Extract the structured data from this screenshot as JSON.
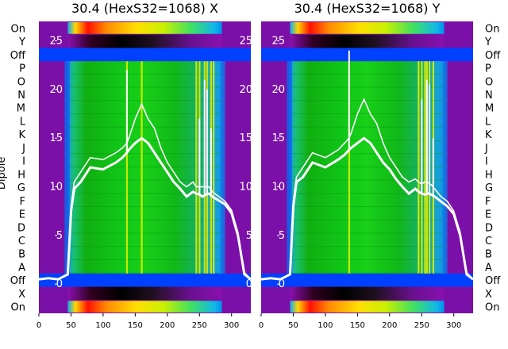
{
  "chart_data": [
    {
      "type": "heatmap",
      "title": "30.4 (HexS32=1068) X",
      "ylabel": "Dipole",
      "xlim": [
        0,
        330
      ],
      "x_ticks": [
        0,
        50,
        100,
        150,
        200,
        250,
        300
      ],
      "rows": [
        "On",
        "Y",
        "Off",
        "P",
        "O",
        "N",
        "M",
        "L",
        "K",
        "J",
        "I",
        "H",
        "G",
        "F",
        "E",
        "D",
        "C",
        "B",
        "A",
        "Off",
        "X",
        "On"
      ],
      "overlay_ylim": [
        -3,
        27
      ],
      "overlay_y_ticks": [
        0,
        5,
        10,
        15,
        20,
        25
      ],
      "bright_columns": [
        137,
        160,
        245,
        250,
        258,
        262,
        268,
        272
      ],
      "overlay_series": {
        "x": [
          0,
          15,
          30,
          45,
          50,
          55,
          65,
          80,
          100,
          120,
          130,
          137,
          140,
          150,
          160,
          170,
          180,
          190,
          200,
          210,
          220,
          230,
          240,
          245,
          250,
          255,
          260,
          265,
          270,
          280,
          290,
          300,
          310,
          320,
          330
        ],
        "y_low": [
          0.5,
          0.6,
          0.5,
          1.0,
          7.5,
          9.8,
          10.5,
          12.0,
          11.8,
          12.5,
          13.0,
          13.5,
          13.8,
          14.5,
          15.0,
          14.5,
          13.5,
          12.5,
          11.5,
          10.5,
          9.8,
          9.0,
          9.5,
          9.3,
          9.2,
          9.0,
          9.2,
          9.3,
          9.0,
          8.6,
          8.2,
          7.3,
          5.0,
          1.0,
          0.5
        ],
        "y_high": [
          0.5,
          0.6,
          0.5,
          1.0,
          8.0,
          10.5,
          11.5,
          13.0,
          12.8,
          13.5,
          14.0,
          14.5,
          15.0,
          17.0,
          18.5,
          17.0,
          16.0,
          14.0,
          12.5,
          11.5,
          10.5,
          10.0,
          10.5,
          10.0,
          10.0,
          10.0,
          10.0,
          10.0,
          9.5,
          9.0,
          8.5,
          7.6,
          5.3,
          1.2,
          0.5
        ],
        "spikes": [
          [
            137,
            22.0
          ],
          [
            250,
            17.0
          ],
          [
            258,
            21.0
          ],
          [
            262,
            20.0
          ],
          [
            268,
            16.0
          ]
        ]
      }
    },
    {
      "type": "heatmap",
      "title": "30.4 (HexS32=1068) Y",
      "xlim": [
        0,
        330
      ],
      "x_ticks": [
        0,
        50,
        100,
        150,
        200,
        250,
        300
      ],
      "rows": [
        "On",
        "Y",
        "Off",
        "P",
        "O",
        "N",
        "M",
        "L",
        "K",
        "J",
        "I",
        "H",
        "G",
        "F",
        "E",
        "D",
        "C",
        "B",
        "A",
        "Off",
        "X",
        "On"
      ],
      "overlay_ylim": [
        -3,
        27
      ],
      "overlay_y_ticks": [
        0,
        5,
        10,
        15,
        20,
        25
      ],
      "bright_columns": [
        137,
        245,
        250,
        255,
        258,
        262,
        268
      ],
      "overlay_series": {
        "x": [
          0,
          15,
          30,
          45,
          50,
          55,
          65,
          80,
          100,
          120,
          130,
          137,
          140,
          150,
          160,
          170,
          180,
          190,
          200,
          210,
          220,
          230,
          240,
          245,
          250,
          255,
          260,
          265,
          270,
          280,
          290,
          300,
          310,
          320,
          330
        ],
        "y_low": [
          0.5,
          0.6,
          0.5,
          1.0,
          8.0,
          10.5,
          11.0,
          12.5,
          12.0,
          12.8,
          13.3,
          13.8,
          14.0,
          14.5,
          15.0,
          14.5,
          13.5,
          12.5,
          11.8,
          10.8,
          10.0,
          9.3,
          9.8,
          9.5,
          9.3,
          9.2,
          9.3,
          9.2,
          9.0,
          8.5,
          8.0,
          7.2,
          5.0,
          1.0,
          0.5
        ],
        "y_high": [
          0.5,
          0.6,
          0.5,
          1.0,
          8.5,
          11.0,
          12.0,
          13.5,
          13.0,
          13.8,
          14.5,
          15.0,
          15.5,
          17.5,
          19.0,
          17.5,
          16.5,
          14.5,
          13.0,
          12.0,
          11.0,
          10.5,
          10.8,
          10.5,
          10.3,
          10.5,
          10.4,
          10.2,
          9.8,
          9.0,
          8.5,
          7.5,
          5.3,
          1.2,
          0.5
        ],
        "spikes": [
          [
            137,
            24.0
          ],
          [
            250,
            19.0
          ],
          [
            258,
            21.0
          ],
          [
            262,
            20.5
          ],
          [
            268,
            15.0
          ]
        ]
      }
    }
  ]
}
